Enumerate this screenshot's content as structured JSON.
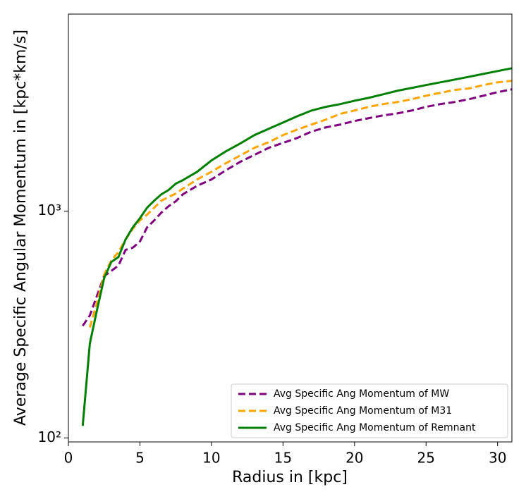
{
  "chart_data": {
    "type": "line",
    "xlabel": "Radius in [kpc]",
    "ylabel": "Average Specific Angular Momentum in [kpc*km/s]",
    "x": [
      1,
      1.5,
      2,
      2.5,
      3,
      3.5,
      4,
      4.5,
      5,
      5.5,
      6,
      6.5,
      7,
      7.5,
      8,
      9,
      10,
      11,
      12,
      13,
      14,
      15,
      16,
      17,
      18,
      19,
      20,
      21,
      22,
      23,
      24,
      25,
      26,
      27,
      28,
      29,
      30,
      31
    ],
    "series": [
      {
        "name": "Avg Specific Ang Momentum of MW",
        "color": "#800080",
        "dashed": true,
        "values": [
          312,
          347,
          424,
          518,
          545,
          576,
          675,
          690,
          735,
          848,
          911,
          986,
          1051,
          1105,
          1187,
          1294,
          1380,
          1514,
          1649,
          1771,
          1903,
          2000,
          2104,
          2245,
          2342,
          2410,
          2499,
          2572,
          2646,
          2700,
          2780,
          2885,
          2967,
          3030,
          3118,
          3230,
          3350,
          3447
        ]
      },
      {
        "name": "Avg Specific Ang Momentum of M31",
        "color": "#ffa500",
        "dashed": true,
        "values": [
          null,
          307,
          395,
          525,
          606,
          661,
          751,
          836,
          911,
          965,
          1036,
          1113,
          1154,
          1196,
          1257,
          1380,
          1492,
          1626,
          1758,
          1903,
          2015,
          2165,
          2291,
          2410,
          2535,
          2687,
          2780,
          2885,
          2967,
          3030,
          3118,
          3230,
          3326,
          3426,
          3477,
          3599,
          3700,
          3760
        ]
      },
      {
        "name": "Avg Specific Ang Momentum of Remnant",
        "color": "#008000",
        "dashed": false,
        "values": [
          113,
          261,
          367,
          507,
          597,
          628,
          751,
          848,
          931,
          1036,
          1113,
          1187,
          1239,
          1322,
          1370,
          1492,
          1674,
          1835,
          1987,
          2165,
          2309,
          2459,
          2624,
          2780,
          2885,
          2967,
          3069,
          3163,
          3277,
          3397,
          3497,
          3599,
          3700,
          3805,
          3916,
          4030,
          4150,
          4270
        ]
      }
    ],
    "xlim": [
      0,
      31
    ],
    "xticks": [
      0,
      5,
      10,
      15,
      20,
      25,
      30
    ],
    "ylim": [
      96,
      7400
    ],
    "yticks": [
      {
        "value": 100,
        "label": "10²"
      },
      {
        "value": 1000,
        "label": "10³"
      }
    ],
    "yscale": "log",
    "legend": "lower right"
  }
}
